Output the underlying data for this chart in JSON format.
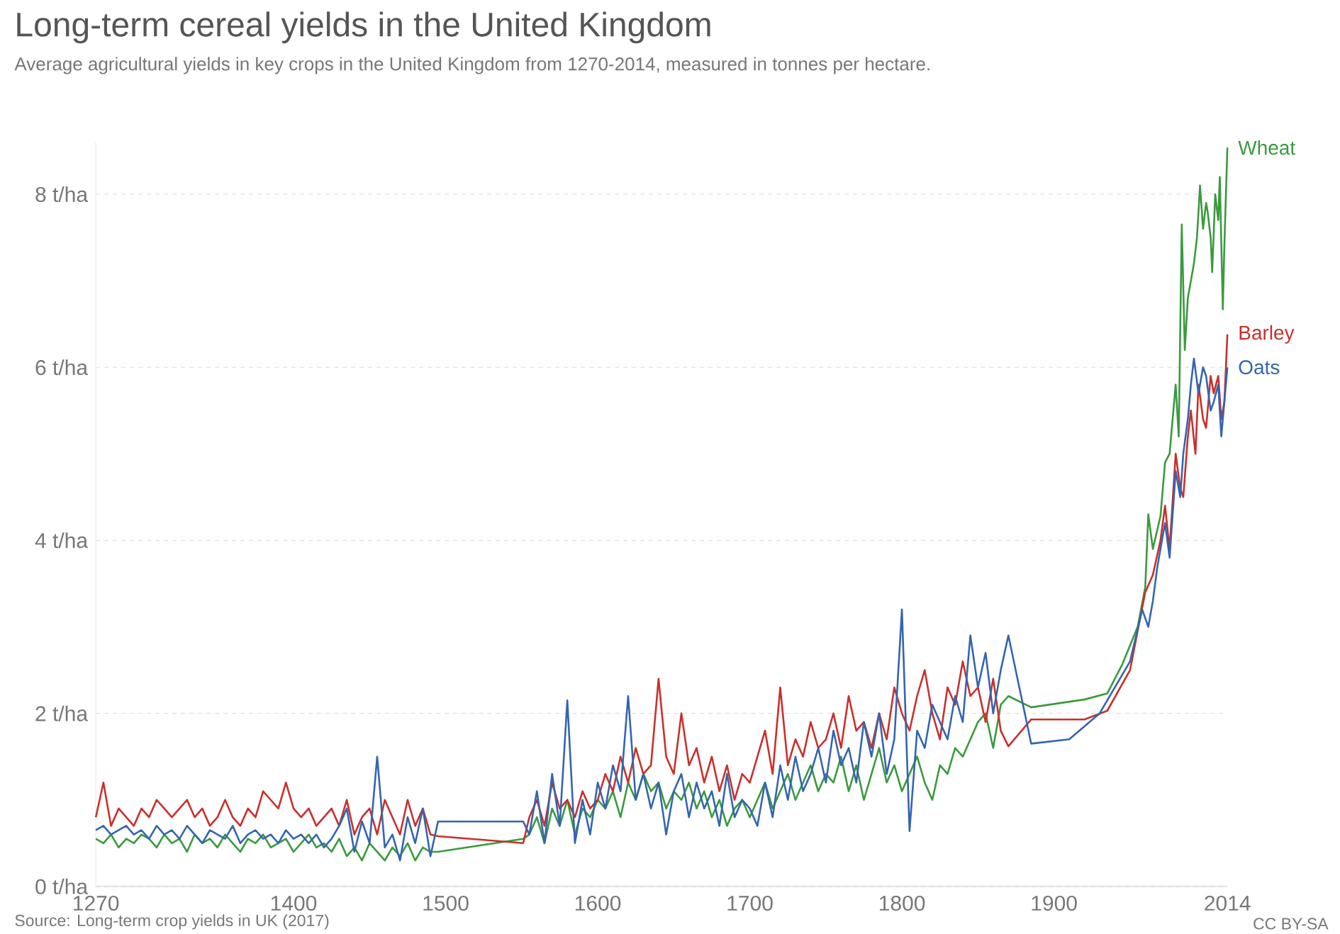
{
  "chart_data": {
    "type": "line",
    "title": "Long-term cereal yields in the United Kingdom",
    "subtitle": "Average agricultural yields in key crops in the United Kingdom from 1270-2014, measured in tonnes per hectare.",
    "annotations": [
      "Source: Long-term crop yields in UK (2017)",
      "CC BY-SA"
    ],
    "xlim": [
      1270,
      2014
    ],
    "xticks": [
      1270,
      1400,
      1500,
      1600,
      1700,
      1800,
      1900,
      2014
    ],
    "ylim": [
      0,
      8.6
    ],
    "yticks": [
      {
        "value": 0,
        "label": "0 t/ha"
      },
      {
        "value": 2,
        "label": "2 t/ha"
      },
      {
        "value": 4,
        "label": "4 t/ha"
      },
      {
        "value": 6,
        "label": "6 t/ha"
      },
      {
        "value": 8,
        "label": "8 t/ha"
      }
    ],
    "grid": "y",
    "series": [
      {
        "name": "Wheat",
        "color": "#3a9a3e",
        "x": [
          1270,
          1275,
          1280,
          1285,
          1290,
          1295,
          1300,
          1305,
          1310,
          1315,
          1320,
          1325,
          1330,
          1335,
          1340,
          1345,
          1350,
          1355,
          1360,
          1365,
          1370,
          1375,
          1380,
          1385,
          1390,
          1395,
          1400,
          1405,
          1410,
          1415,
          1420,
          1425,
          1430,
          1435,
          1440,
          1445,
          1450,
          1455,
          1460,
          1465,
          1470,
          1475,
          1480,
          1485,
          1490,
          1495,
          1551,
          1555,
          1560,
          1565,
          1570,
          1575,
          1580,
          1585,
          1590,
          1595,
          1600,
          1605,
          1610,
          1615,
          1620,
          1625,
          1630,
          1635,
          1640,
          1645,
          1650,
          1655,
          1660,
          1665,
          1670,
          1675,
          1680,
          1685,
          1690,
          1695,
          1700,
          1705,
          1710,
          1715,
          1720,
          1725,
          1730,
          1735,
          1740,
          1745,
          1750,
          1755,
          1760,
          1765,
          1770,
          1775,
          1780,
          1785,
          1790,
          1795,
          1800,
          1805,
          1810,
          1815,
          1820,
          1825,
          1830,
          1835,
          1840,
          1845,
          1850,
          1855,
          1860,
          1865,
          1870,
          1885,
          1920,
          1935,
          1945,
          1955,
          1960,
          1962,
          1965,
          1970,
          1973,
          1976,
          1980,
          1982,
          1984,
          1986,
          1988,
          1990,
          1992,
          1994,
          1996,
          1998,
          2000,
          2001,
          2003,
          2004,
          2006,
          2008,
          2009,
          2011,
          2012,
          2014
        ],
        "values": [
          0.55,
          0.5,
          0.6,
          0.45,
          0.55,
          0.5,
          0.6,
          0.55,
          0.45,
          0.6,
          0.5,
          0.55,
          0.4,
          0.6,
          0.5,
          0.55,
          0.45,
          0.6,
          0.5,
          0.4,
          0.55,
          0.5,
          0.6,
          0.45,
          0.5,
          0.55,
          0.4,
          0.5,
          0.6,
          0.45,
          0.5,
          0.4,
          0.55,
          0.35,
          0.45,
          0.3,
          0.5,
          0.4,
          0.3,
          0.45,
          0.35,
          0.5,
          0.3,
          0.45,
          0.4,
          0.4,
          0.55,
          0.6,
          0.8,
          0.5,
          0.9,
          0.7,
          1.0,
          0.6,
          0.9,
          0.8,
          1.0,
          0.9,
          1.1,
          0.8,
          1.2,
          1.0,
          1.3,
          1.1,
          1.2,
          0.9,
          1.1,
          1.0,
          1.2,
          0.9,
          1.1,
          0.8,
          1.0,
          0.7,
          0.9,
          1.0,
          0.8,
          1.0,
          1.2,
          0.9,
          1.1,
          1.3,
          1.0,
          1.2,
          1.4,
          1.1,
          1.3,
          1.2,
          1.5,
          1.1,
          1.4,
          1.0,
          1.3,
          1.6,
          1.2,
          1.4,
          1.1,
          1.3,
          1.5,
          1.2,
          1.0,
          1.4,
          1.3,
          1.6,
          1.5,
          1.7,
          1.9,
          2.0,
          1.6,
          2.1,
          2.2,
          2.07,
          2.16,
          2.23,
          2.57,
          3.0,
          3.46,
          4.3,
          3.9,
          4.28,
          4.9,
          5.0,
          5.8,
          5.2,
          7.65,
          6.2,
          6.8,
          7.0,
          7.2,
          7.5,
          8.1,
          7.6,
          7.9,
          7.8,
          7.5,
          7.1,
          8.0,
          7.7,
          8.2,
          6.67,
          7.4,
          8.54
        ]
      },
      {
        "name": "Barley",
        "color": "#c9302c",
        "x": [
          1270,
          1275,
          1280,
          1285,
          1290,
          1295,
          1300,
          1305,
          1310,
          1315,
          1320,
          1325,
          1330,
          1335,
          1340,
          1345,
          1350,
          1355,
          1360,
          1365,
          1370,
          1375,
          1380,
          1385,
          1390,
          1395,
          1400,
          1405,
          1410,
          1415,
          1420,
          1425,
          1430,
          1435,
          1440,
          1445,
          1450,
          1455,
          1460,
          1465,
          1470,
          1475,
          1480,
          1485,
          1490,
          1495,
          1551,
          1555,
          1560,
          1565,
          1570,
          1575,
          1580,
          1585,
          1590,
          1595,
          1600,
          1605,
          1610,
          1615,
          1620,
          1625,
          1630,
          1635,
          1640,
          1645,
          1650,
          1655,
          1660,
          1665,
          1670,
          1675,
          1680,
          1685,
          1690,
          1695,
          1700,
          1705,
          1710,
          1715,
          1720,
          1725,
          1730,
          1735,
          1740,
          1745,
          1750,
          1755,
          1760,
          1765,
          1770,
          1775,
          1780,
          1785,
          1790,
          1795,
          1800,
          1805,
          1810,
          1815,
          1820,
          1825,
          1830,
          1835,
          1840,
          1845,
          1850,
          1855,
          1860,
          1865,
          1870,
          1885,
          1920,
          1935,
          1950,
          1960,
          1965,
          1970,
          1973,
          1976,
          1980,
          1983,
          1985,
          1988,
          1990,
          1993,
          1995,
          1998,
          2000,
          2003,
          2005,
          2008,
          2010,
          2012,
          2014
        ],
        "values": [
          0.8,
          1.2,
          0.7,
          0.9,
          0.8,
          0.7,
          0.9,
          0.8,
          1.0,
          0.9,
          0.8,
          0.9,
          1.0,
          0.8,
          0.9,
          0.7,
          0.8,
          1.0,
          0.8,
          0.7,
          0.9,
          0.8,
          1.1,
          1.0,
          0.9,
          1.2,
          0.9,
          0.8,
          0.9,
          0.7,
          0.8,
          0.9,
          0.7,
          1.0,
          0.6,
          0.8,
          0.9,
          0.6,
          1.0,
          0.8,
          0.6,
          1.0,
          0.7,
          0.9,
          0.6,
          0.58,
          0.5,
          0.8,
          1.0,
          0.7,
          1.2,
          0.9,
          1.0,
          0.8,
          1.1,
          0.9,
          1.0,
          1.3,
          1.1,
          1.5,
          1.2,
          1.6,
          1.3,
          1.4,
          2.4,
          1.5,
          1.3,
          2.0,
          1.4,
          1.6,
          1.2,
          1.5,
          1.1,
          1.4,
          1.0,
          1.3,
          1.2,
          1.5,
          1.8,
          1.3,
          2.3,
          1.4,
          1.7,
          1.5,
          1.9,
          1.6,
          1.7,
          2.0,
          1.6,
          2.2,
          1.8,
          1.9,
          1.6,
          2.0,
          1.7,
          2.3,
          2.0,
          1.8,
          2.2,
          2.5,
          2.0,
          1.7,
          2.3,
          2.1,
          2.6,
          2.2,
          2.3,
          1.9,
          2.4,
          1.8,
          1.62,
          1.93,
          1.93,
          2.03,
          2.5,
          3.4,
          3.6,
          4.0,
          4.4,
          3.9,
          5.0,
          4.6,
          4.5,
          5.2,
          5.5,
          5.0,
          5.8,
          5.4,
          5.3,
          5.9,
          5.7,
          5.9,
          5.4,
          5.6,
          6.38
        ]
      },
      {
        "name": "Oats",
        "color": "#3565b0",
        "x": [
          1270,
          1275,
          1280,
          1285,
          1290,
          1295,
          1300,
          1305,
          1310,
          1315,
          1320,
          1325,
          1330,
          1335,
          1340,
          1345,
          1350,
          1355,
          1360,
          1365,
          1370,
          1375,
          1380,
          1385,
          1390,
          1395,
          1400,
          1405,
          1410,
          1415,
          1420,
          1425,
          1430,
          1435,
          1440,
          1445,
          1450,
          1455,
          1460,
          1465,
          1470,
          1475,
          1480,
          1485,
          1490,
          1495,
          1551,
          1555,
          1560,
          1565,
          1570,
          1575,
          1580,
          1585,
          1590,
          1595,
          1600,
          1605,
          1610,
          1615,
          1620,
          1625,
          1630,
          1635,
          1640,
          1645,
          1650,
          1655,
          1660,
          1665,
          1670,
          1675,
          1680,
          1685,
          1690,
          1695,
          1700,
          1705,
          1710,
          1715,
          1720,
          1725,
          1730,
          1735,
          1740,
          1745,
          1750,
          1755,
          1760,
          1765,
          1770,
          1775,
          1780,
          1785,
          1790,
          1795,
          1800,
          1805,
          1810,
          1815,
          1820,
          1825,
          1830,
          1835,
          1840,
          1845,
          1850,
          1855,
          1860,
          1865,
          1870,
          1885,
          1910,
          1930,
          1950,
          1958,
          1962,
          1965,
          1968,
          1970,
          1973,
          1976,
          1980,
          1983,
          1985,
          1988,
          1990,
          1992,
          1995,
          1998,
          2000,
          2003,
          2005,
          2008,
          2010,
          2012,
          2014
        ],
        "values": [
          0.65,
          0.7,
          0.6,
          0.65,
          0.7,
          0.6,
          0.65,
          0.55,
          0.7,
          0.6,
          0.65,
          0.55,
          0.7,
          0.6,
          0.5,
          0.65,
          0.6,
          0.55,
          0.7,
          0.5,
          0.6,
          0.65,
          0.55,
          0.6,
          0.5,
          0.65,
          0.55,
          0.6,
          0.5,
          0.6,
          0.45,
          0.55,
          0.7,
          0.9,
          0.4,
          0.75,
          0.5,
          1.5,
          0.45,
          0.6,
          0.3,
          0.8,
          0.5,
          0.9,
          0.35,
          0.75,
          0.75,
          0.6,
          1.1,
          0.5,
          1.3,
          0.7,
          2.15,
          0.5,
          1.0,
          0.6,
          1.2,
          0.9,
          1.4,
          1.1,
          2.2,
          1.0,
          1.3,
          0.9,
          1.2,
          0.6,
          1.1,
          1.3,
          0.8,
          1.2,
          0.9,
          1.1,
          0.7,
          1.3,
          0.8,
          1.0,
          0.9,
          0.7,
          1.2,
          0.8,
          1.4,
          1.0,
          1.5,
          1.1,
          1.3,
          1.6,
          1.2,
          1.8,
          1.4,
          1.6,
          1.2,
          1.9,
          1.5,
          2.0,
          1.3,
          1.7,
          3.2,
          0.64,
          1.8,
          1.6,
          2.1,
          1.9,
          1.7,
          2.2,
          1.9,
          2.9,
          2.3,
          2.7,
          2.0,
          2.5,
          2.9,
          1.65,
          1.7,
          2.0,
          2.6,
          3.2,
          3.0,
          3.3,
          3.7,
          3.9,
          4.2,
          3.8,
          4.8,
          4.5,
          5.0,
          5.4,
          5.8,
          6.1,
          5.7,
          6.0,
          5.9,
          5.5,
          5.6,
          5.8,
          5.2,
          5.6,
          6.0
        ]
      }
    ]
  }
}
